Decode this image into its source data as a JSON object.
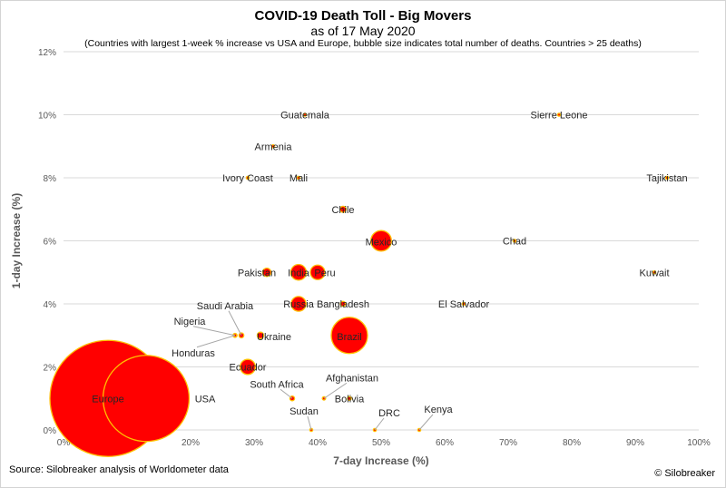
{
  "chart_data": {
    "type": "scatter",
    "title": "COVID-19 Death Toll - Big Movers",
    "subtitle": "as of 17 May 2020",
    "note": "(Countries with largest 1-week % increase vs USA and Europe, bubble size indicates total number of deaths. Countries > 25 deaths)",
    "xlabel": "7-day Increase (%)",
    "ylabel": "1-day Increase (%)",
    "xlim": [
      0,
      100
    ],
    "ylim": [
      0,
      12
    ],
    "x_ticks": [
      "0%",
      "10%",
      "20%",
      "30%",
      "40%",
      "50%",
      "60%",
      "70%",
      "80%",
      "90%",
      "100%"
    ],
    "y_ticks": [
      "0%",
      "2%",
      "4%",
      "6%",
      "8%",
      "10%",
      "12%"
    ],
    "grid": "horizontal",
    "bubble_color": "#ff0000",
    "bubble_border": "#ffc000",
    "points": [
      {
        "label": "USA",
        "x": 13,
        "y": 1,
        "size": 88000
      },
      {
        "label": "Europe",
        "x": 7,
        "y": 1,
        "size": 160000
      },
      {
        "label": "Brazil",
        "x": 45,
        "y": 3,
        "size": 15600
      },
      {
        "label": "Mexico",
        "x": 50,
        "y": 6,
        "size": 5000
      },
      {
        "label": "Russia",
        "x": 37,
        "y": 4,
        "size": 2600
      },
      {
        "label": "India",
        "x": 37,
        "y": 5,
        "size": 2900
      },
      {
        "label": "Peru",
        "x": 40,
        "y": 5,
        "size": 2500
      },
      {
        "label": "Ecuador",
        "x": 29,
        "y": 2,
        "size": 2700
      },
      {
        "label": "Pakistan",
        "x": 32,
        "y": 5,
        "size": 830
      },
      {
        "label": "Bangladesh",
        "x": 44,
        "y": 4,
        "size": 300
      },
      {
        "label": "Chile",
        "x": 44,
        "y": 7,
        "size": 440
      },
      {
        "label": "Ukraine",
        "x": 31,
        "y": 3,
        "size": 500
      },
      {
        "label": "South Africa",
        "x": 36,
        "y": 1,
        "size": 260
      },
      {
        "label": "Afghanistan",
        "x": 41,
        "y": 1,
        "size": 130
      },
      {
        "label": "Bolivia",
        "x": 45,
        "y": 1,
        "size": 170
      },
      {
        "label": "Saudi Arabia",
        "x": 28,
        "y": 3,
        "size": 280
      },
      {
        "label": "Nigeria",
        "x": 27,
        "y": 3,
        "size": 190
      },
      {
        "label": "Honduras",
        "x": 27,
        "y": 3,
        "size": 140
      },
      {
        "label": "Sudan",
        "x": 39,
        "y": 0,
        "size": 100
      },
      {
        "label": "DRC",
        "x": 49,
        "y": 0,
        "size": 60
      },
      {
        "label": "Kenya",
        "x": 56,
        "y": 0,
        "size": 50
      },
      {
        "label": "Guatemala",
        "x": 38,
        "y": 10,
        "size": 30
      },
      {
        "label": "Sierre Leone",
        "x": 78,
        "y": 10,
        "size": 30
      },
      {
        "label": "Armenia",
        "x": 33,
        "y": 9,
        "size": 40
      },
      {
        "label": "Ivory Coast",
        "x": 29,
        "y": 8,
        "size": 30
      },
      {
        "label": "Mali",
        "x": 37,
        "y": 8,
        "size": 50
      },
      {
        "label": "Tajikistan",
        "x": 95,
        "y": 8,
        "size": 30
      },
      {
        "label": "Chad",
        "x": 71,
        "y": 6,
        "size": 50
      },
      {
        "label": "Kuwait",
        "x": 93,
        "y": 5,
        "size": 100
      },
      {
        "label": "El Salvador",
        "x": 63,
        "y": 4,
        "size": 30
      }
    ]
  },
  "footer": {
    "source": "Source: Silobreaker analysis of Worldometer data",
    "copyright": "© Silobreaker"
  }
}
